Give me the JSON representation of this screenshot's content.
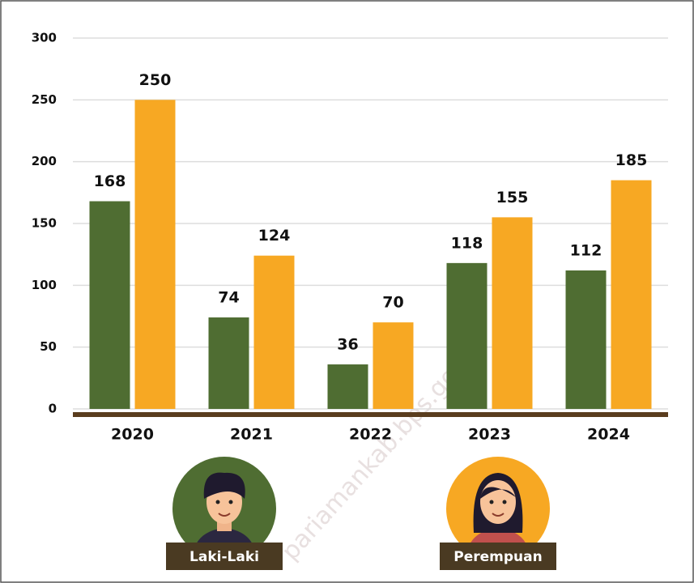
{
  "chart_data": {
    "type": "bar",
    "categories": [
      "2020",
      "2021",
      "2022",
      "2023",
      "2024"
    ],
    "series": [
      {
        "name": "Laki-Laki",
        "color": "#4f6d32",
        "values": [
          168,
          74,
          36,
          118,
          112
        ]
      },
      {
        "name": "Perempuan",
        "color": "#f7a823",
        "values": [
          250,
          124,
          70,
          155,
          185
        ]
      }
    ],
    "ylim": [
      0,
      300
    ],
    "yticks": [
      0,
      50,
      100,
      150,
      200,
      250,
      300
    ],
    "grid": true,
    "watermark": "pariamankab.bps.go.id"
  }
}
